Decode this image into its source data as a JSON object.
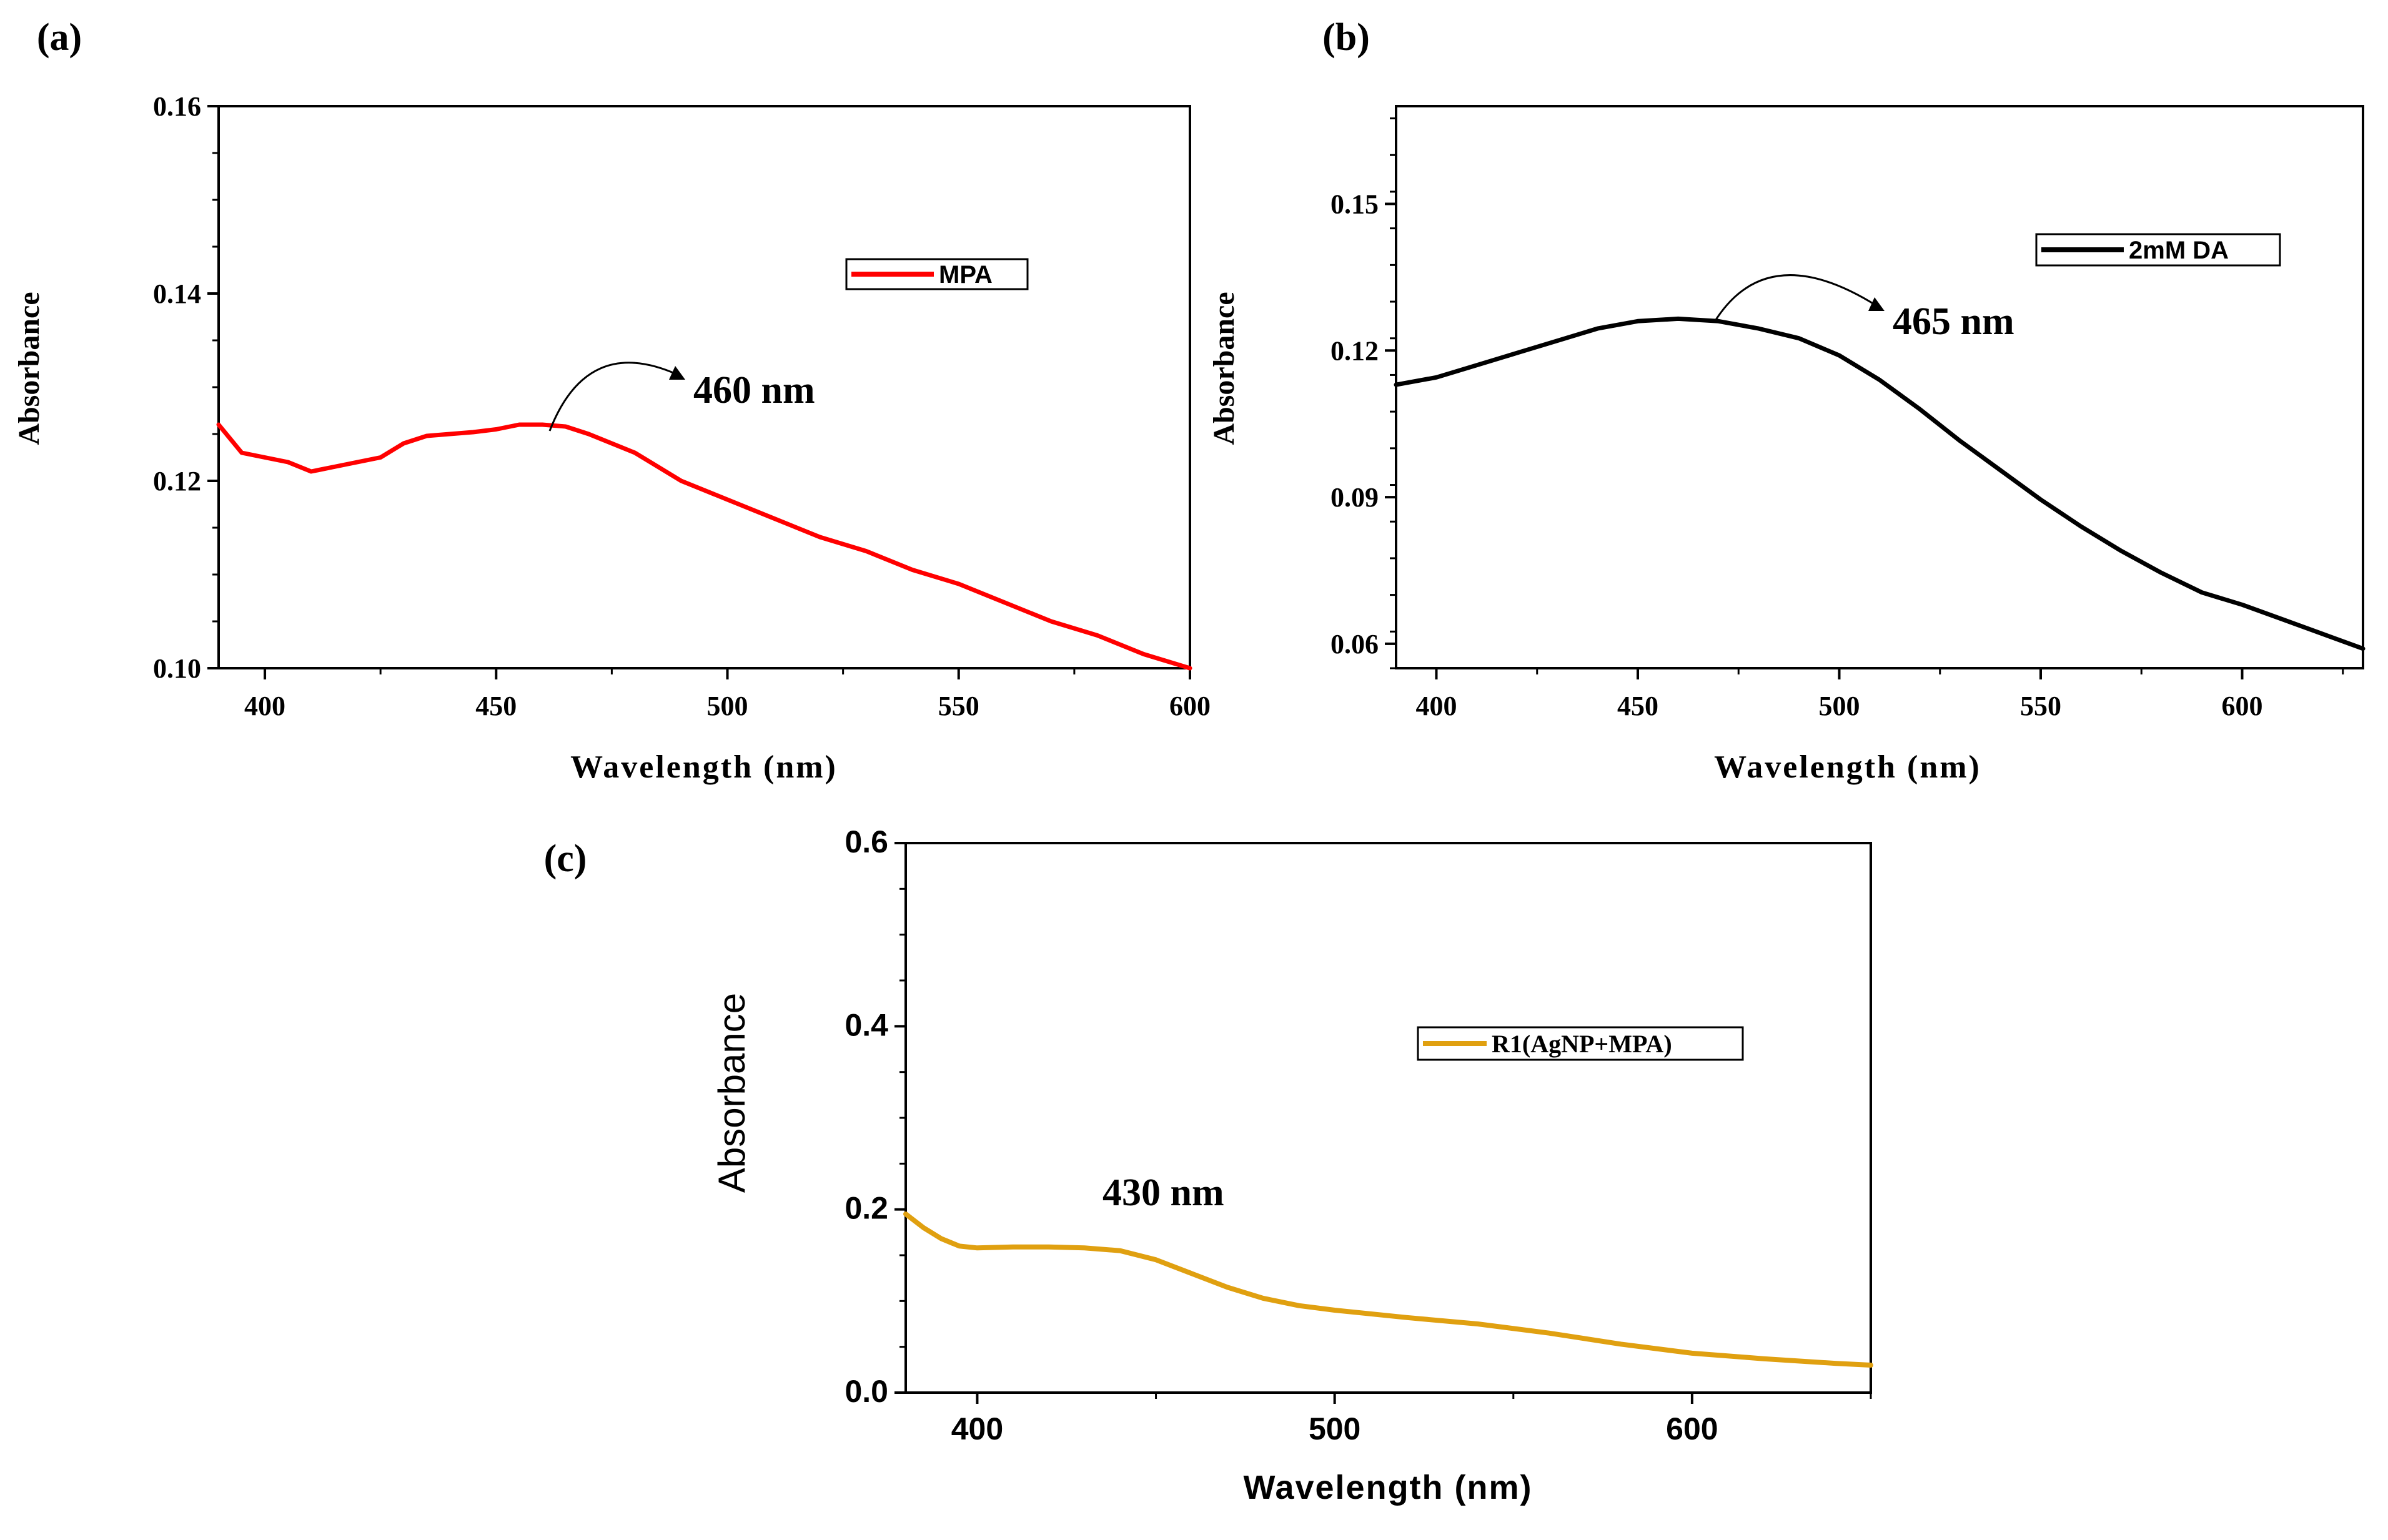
{
  "chart_data": [
    {
      "panel_label": "(a)",
      "type": "line",
      "xlabel": "Wavelength (nm)",
      "ylabel": "Absorbance",
      "xlim": [
        390,
        600
      ],
      "ylim": [
        0.1,
        0.16
      ],
      "xticks": [
        400,
        450,
        500,
        550,
        600
      ],
      "xtick_labels": [
        "400",
        "450",
        "500",
        "550",
        "600"
      ],
      "yticks": [
        0.1,
        0.12,
        0.14,
        0.16
      ],
      "ytick_labels": [
        "0.10",
        "0.12",
        "0.14",
        "0.16"
      ],
      "legend": "top-right",
      "annotation": {
        "text": "460 nm",
        "x": 460,
        "y": 0.126
      },
      "series": [
        {
          "name": "MPA",
          "color": "#ff0000",
          "x": [
            390,
            395,
            400,
            405,
            410,
            415,
            420,
            425,
            430,
            435,
            440,
            445,
            450,
            455,
            460,
            465,
            470,
            475,
            480,
            485,
            490,
            495,
            500,
            510,
            520,
            530,
            540,
            550,
            560,
            570,
            580,
            590,
            600
          ],
          "y": [
            0.126,
            0.123,
            0.1225,
            0.122,
            0.121,
            0.1215,
            0.122,
            0.1225,
            0.124,
            0.1248,
            0.125,
            0.1252,
            0.1255,
            0.126,
            0.126,
            0.1258,
            0.125,
            0.124,
            0.123,
            0.1215,
            0.12,
            0.119,
            0.118,
            0.116,
            0.114,
            0.1125,
            0.1105,
            0.109,
            0.107,
            0.105,
            0.1035,
            0.1015,
            0.1
          ]
        }
      ]
    },
    {
      "panel_label": "(b)",
      "type": "line",
      "xlabel": "Wavelength (nm)",
      "ylabel": "Absorbance",
      "xlim": [
        390,
        630
      ],
      "ylim": [
        0.055,
        0.17
      ],
      "xticks": [
        400,
        450,
        500,
        550,
        600
      ],
      "xtick_labels": [
        "400",
        "450",
        "500",
        "550",
        "600"
      ],
      "yticks": [
        0.06,
        0.09,
        0.12,
        0.15
      ],
      "ytick_labels": [
        "0.06",
        "0.09",
        "0.12",
        "0.15"
      ],
      "legend": "top-right",
      "annotation": {
        "text": "465 nm",
        "x": 465,
        "y": 0.126
      },
      "series": [
        {
          "name": "2mM DA",
          "color": "#000000",
          "x": [
            390,
            400,
            410,
            420,
            430,
            440,
            450,
            460,
            470,
            480,
            490,
            500,
            510,
            520,
            530,
            540,
            550,
            560,
            570,
            580,
            590,
            600,
            610,
            620,
            630
          ],
          "y": [
            0.113,
            0.1145,
            0.117,
            0.1195,
            0.122,
            0.1245,
            0.126,
            0.1265,
            0.126,
            0.1245,
            0.1225,
            0.119,
            0.114,
            0.108,
            0.1015,
            0.0955,
            0.0895,
            0.084,
            0.079,
            0.0745,
            0.0705,
            0.068,
            0.065,
            0.062,
            0.059
          ]
        }
      ]
    },
    {
      "panel_label": "(c)",
      "type": "line",
      "xlabel": "Wavelength (nm)",
      "ylabel": "Absorbance",
      "xlim": [
        380,
        650
      ],
      "ylim": [
        0.0,
        0.6
      ],
      "xticks": [
        400,
        500,
        600
      ],
      "xtick_labels": [
        "400",
        "500",
        "600"
      ],
      "yticks": [
        0.0,
        0.2,
        0.4,
        0.6
      ],
      "ytick_labels": [
        "0.0",
        "0.2",
        "0.4",
        "0.6"
      ],
      "legend": "top-right",
      "annotation": {
        "text": "430 nm",
        "x": 430,
        "y": 0.158
      },
      "series": [
        {
          "name": "R1(AgNP+MPA)",
          "color": "#e0a010",
          "x": [
            380,
            385,
            390,
            395,
            400,
            410,
            420,
            430,
            440,
            450,
            460,
            470,
            480,
            490,
            500,
            520,
            540,
            560,
            580,
            600,
            620,
            640,
            650
          ],
          "y": [
            0.195,
            0.18,
            0.168,
            0.16,
            0.158,
            0.159,
            0.159,
            0.158,
            0.155,
            0.145,
            0.13,
            0.115,
            0.103,
            0.095,
            0.09,
            0.082,
            0.075,
            0.065,
            0.053,
            0.043,
            0.037,
            0.032,
            0.03
          ]
        }
      ]
    }
  ]
}
